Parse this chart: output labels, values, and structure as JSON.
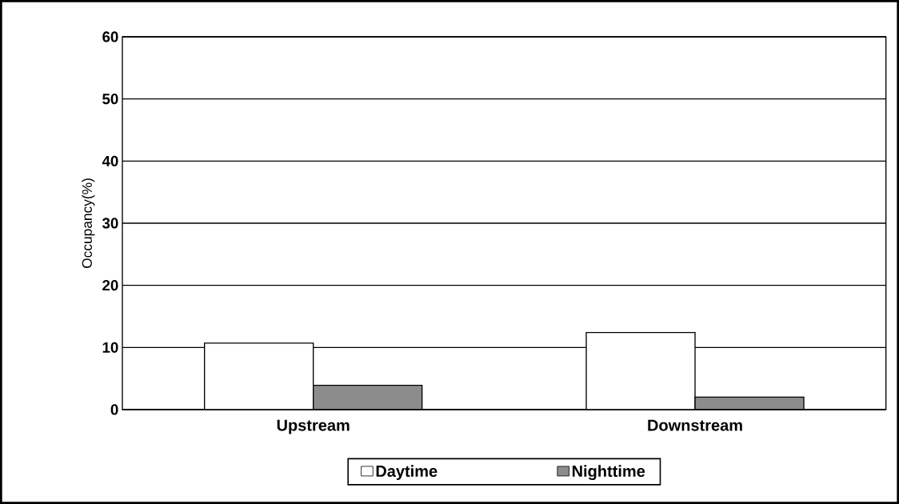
{
  "chart_data": {
    "type": "bar",
    "ylabel": "Occupancy(%)",
    "categories": [
      "Upstream",
      "Downstream"
    ],
    "series": [
      {
        "name": "Daytime",
        "color": "#ffffff",
        "values": [
          10.7,
          12.4
        ]
      },
      {
        "name": "Nighttime",
        "color": "#8c8c8c",
        "values": [
          3.9,
          2.0
        ]
      }
    ],
    "ylim": [
      0,
      60
    ],
    "yticks": [
      0,
      10,
      20,
      30,
      40,
      50,
      60
    ],
    "grid": "y",
    "legend": "bottom"
  }
}
